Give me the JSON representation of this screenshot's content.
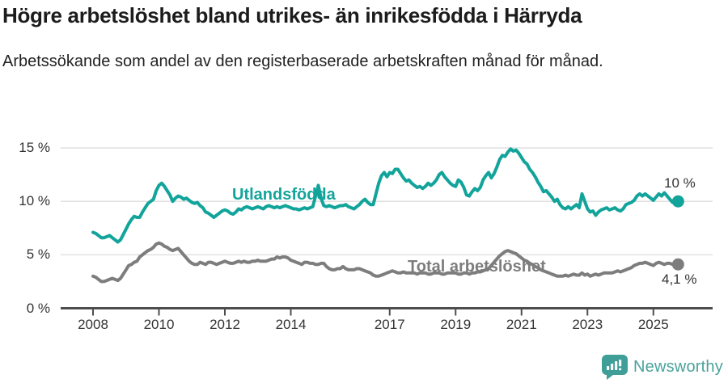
{
  "chart_data": {
    "type": "line",
    "title": "Högre arbetslöshet bland utrikes- än inrikesfödda i Härryda",
    "subtitle": "Arbetssökande som andel av den registerbaserade arbetskraften månad för månad.",
    "x_axis": {
      "ticks": [
        2008,
        2010,
        2012,
        2014,
        2017,
        2019,
        2021,
        2023,
        2025
      ],
      "range": [
        2007.0,
        2026.0
      ]
    },
    "y_axis": {
      "ticks": [
        {
          "value": 0,
          "label": "0 %"
        },
        {
          "value": 5,
          "label": "5 %"
        },
        {
          "value": 10,
          "label": "10 %"
        },
        {
          "value": 15,
          "label": "15 %"
        }
      ],
      "range": [
        0,
        15
      ],
      "grid": true
    },
    "series": [
      {
        "name": "Utlandsfödda",
        "color": "#12a49b",
        "end_label": "10 %",
        "start_year": 2008,
        "points_per_year": 12,
        "values": [
          7.1,
          7.0,
          6.8,
          6.6,
          6.6,
          6.7,
          6.8,
          6.6,
          6.4,
          6.2,
          6.4,
          6.9,
          7.4,
          7.9,
          8.3,
          8.6,
          8.5,
          8.5,
          9.0,
          9.4,
          9.8,
          10.0,
          10.2,
          11.0,
          11.5,
          11.7,
          11.4,
          11.0,
          10.6,
          10.0,
          10.3,
          10.5,
          10.4,
          10.2,
          10.3,
          10.1,
          9.9,
          9.8,
          9.9,
          9.6,
          9.4,
          9.0,
          8.9,
          8.7,
          8.5,
          8.7,
          8.9,
          9.1,
          9.2,
          9.1,
          8.9,
          8.8,
          9.0,
          9.3,
          9.2,
          9.4,
          9.5,
          9.4,
          9.3,
          9.4,
          9.5,
          9.4,
          9.3,
          9.5,
          9.6,
          9.5,
          9.4,
          9.5,
          9.4,
          9.5,
          9.6,
          9.5,
          9.4,
          9.3,
          9.3,
          9.2,
          9.3,
          9.4,
          9.3,
          9.4,
          9.5,
          10.5,
          11.5,
          10.3,
          9.6,
          9.5,
          9.6,
          9.5,
          9.4,
          9.5,
          9.6,
          9.6,
          9.7,
          9.5,
          9.4,
          9.3,
          9.5,
          9.7,
          10.0,
          10.2,
          9.9,
          9.7,
          9.7,
          10.7,
          11.7,
          12.4,
          12.7,
          12.3,
          12.7,
          12.6,
          13.0,
          13.0,
          12.6,
          12.2,
          11.9,
          12.0,
          11.7,
          11.5,
          11.3,
          11.4,
          11.2,
          11.4,
          11.7,
          11.5,
          11.7,
          12.0,
          12.5,
          12.7,
          12.3,
          12.0,
          11.7,
          11.5,
          11.4,
          12.0,
          11.8,
          11.3,
          10.6,
          10.5,
          10.9,
          11.2,
          11.0,
          11.3,
          12.0,
          12.4,
          12.7,
          12.2,
          12.6,
          13.2,
          13.9,
          14.3,
          14.2,
          14.6,
          14.9,
          14.7,
          14.8,
          14.5,
          14.1,
          13.7,
          13.5,
          13.0,
          12.7,
          12.3,
          11.8,
          11.4,
          10.9,
          11.0,
          10.7,
          10.4,
          10.0,
          10.2,
          9.7,
          9.4,
          9.3,
          9.5,
          9.3,
          9.5,
          9.7,
          9.4,
          10.7,
          10.0,
          9.3,
          9.0,
          9.1,
          8.7,
          9.0,
          9.2,
          9.3,
          9.4,
          9.2,
          9.3,
          9.4,
          9.2,
          9.1,
          9.3,
          9.7,
          9.8,
          9.9,
          10.1,
          10.5,
          10.7,
          10.5,
          10.7,
          10.5,
          10.3,
          10.1,
          10.4,
          10.7,
          10.5,
          10.8,
          10.5,
          10.2,
          9.9,
          10.0,
          10.0
        ]
      },
      {
        "name": "Total arbetslöshet",
        "color": "#7d7d7d",
        "end_label": "4,1 %",
        "start_year": 2008,
        "points_per_year": 12,
        "values": [
          3.0,
          2.9,
          2.7,
          2.5,
          2.5,
          2.6,
          2.7,
          2.8,
          2.7,
          2.6,
          2.8,
          3.2,
          3.6,
          4.0,
          4.1,
          4.3,
          4.4,
          4.8,
          5.0,
          5.2,
          5.4,
          5.5,
          5.7,
          6.0,
          6.1,
          6.0,
          5.8,
          5.7,
          5.5,
          5.4,
          5.5,
          5.6,
          5.3,
          5.0,
          4.7,
          4.4,
          4.2,
          4.1,
          4.1,
          4.3,
          4.2,
          4.1,
          4.3,
          4.3,
          4.2,
          4.1,
          4.2,
          4.3,
          4.4,
          4.3,
          4.2,
          4.2,
          4.3,
          4.4,
          4.3,
          4.4,
          4.3,
          4.3,
          4.4,
          4.4,
          4.5,
          4.4,
          4.4,
          4.4,
          4.5,
          4.6,
          4.6,
          4.8,
          4.7,
          4.8,
          4.8,
          4.7,
          4.5,
          4.4,
          4.3,
          4.2,
          4.1,
          4.3,
          4.3,
          4.2,
          4.2,
          4.1,
          4.1,
          4.2,
          4.2,
          3.9,
          3.7,
          3.6,
          3.6,
          3.7,
          3.7,
          3.9,
          3.7,
          3.6,
          3.6,
          3.6,
          3.7,
          3.7,
          3.6,
          3.5,
          3.4,
          3.3,
          3.1,
          3.0,
          3.0,
          3.1,
          3.2,
          3.3,
          3.4,
          3.5,
          3.4,
          3.3,
          3.3,
          3.4,
          3.3,
          3.3,
          3.3,
          3.3,
          3.2,
          3.3,
          3.3,
          3.3,
          3.2,
          3.2,
          3.3,
          3.3,
          3.3,
          3.2,
          3.2,
          3.3,
          3.3,
          3.3,
          3.3,
          3.2,
          3.2,
          3.3,
          3.3,
          3.2,
          3.3,
          3.3,
          3.4,
          3.4,
          3.5,
          3.6,
          3.7,
          4.0,
          4.3,
          4.6,
          4.9,
          5.1,
          5.3,
          5.4,
          5.3,
          5.2,
          5.1,
          4.9,
          4.7,
          4.5,
          4.4,
          4.2,
          4.1,
          3.9,
          3.8,
          3.6,
          3.5,
          3.4,
          3.3,
          3.2,
          3.1,
          3.0,
          3.0,
          3.0,
          3.1,
          3.0,
          3.1,
          3.2,
          3.1,
          3.1,
          3.3,
          3.1,
          3.2,
          3.0,
          3.1,
          3.2,
          3.1,
          3.2,
          3.3,
          3.3,
          3.3,
          3.3,
          3.4,
          3.5,
          3.4,
          3.5,
          3.6,
          3.7,
          3.8,
          4.0,
          4.1,
          4.2,
          4.2,
          4.3,
          4.2,
          4.1,
          4.0,
          4.2,
          4.3,
          4.2,
          4.1,
          4.2,
          4.2,
          4.1,
          4.1,
          4.1
        ]
      }
    ],
    "legend_position": "inline-labels"
  },
  "branding": {
    "logo_text": "Newsworthy",
    "logo_color": "#4aa29c"
  },
  "colors": {
    "grid": "#dcdcdc",
    "axis": "#4d4d4d",
    "tick_text": "#333333"
  }
}
